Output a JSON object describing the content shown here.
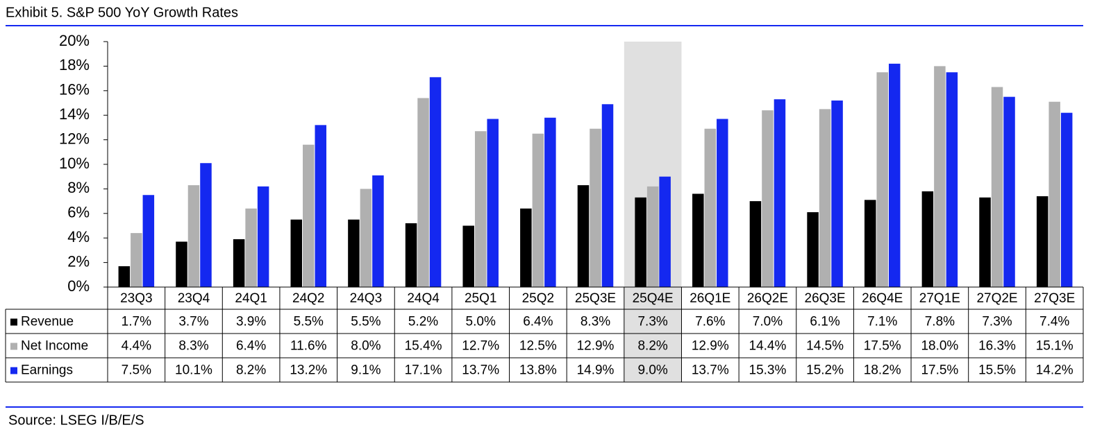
{
  "chart_data": {
    "type": "bar",
    "title": "Exhibit 5.  S&P 500 YoY Growth Rates",
    "source": "Source: LSEG I/B/E/S",
    "categories": [
      "23Q3",
      "23Q4",
      "24Q1",
      "24Q2",
      "24Q3",
      "24Q4",
      "25Q1",
      "25Q2",
      "25Q3E",
      "25Q4E",
      "26Q1E",
      "26Q2E",
      "26Q3E",
      "26Q4E",
      "27Q1E",
      "27Q2E",
      "27Q3E"
    ],
    "series": [
      {
        "name": "Revenue",
        "color": "#000000",
        "values": [
          1.7,
          3.7,
          3.9,
          5.5,
          5.5,
          5.2,
          5.0,
          6.4,
          8.3,
          7.3,
          7.6,
          7.0,
          6.1,
          7.1,
          7.8,
          7.3,
          7.4
        ],
        "value_labels": [
          "1.7%",
          "3.7%",
          "3.9%",
          "5.5%",
          "5.5%",
          "5.2%",
          "5.0%",
          "6.4%",
          "8.3%",
          "7.3%",
          "7.6%",
          "7.0%",
          "6.1%",
          "7.1%",
          "7.8%",
          "7.3%",
          "7.4%"
        ]
      },
      {
        "name": "Net Income",
        "color": "#b0b0b0",
        "values": [
          4.4,
          8.3,
          6.4,
          11.6,
          8.0,
          15.4,
          12.7,
          12.5,
          12.9,
          8.2,
          12.9,
          14.4,
          14.5,
          17.5,
          18.0,
          16.3,
          15.1
        ],
        "value_labels": [
          "4.4%",
          "8.3%",
          "6.4%",
          "11.6%",
          "8.0%",
          "15.4%",
          "12.7%",
          "12.5%",
          "12.9%",
          "8.2%",
          "12.9%",
          "14.4%",
          "14.5%",
          "17.5%",
          "18.0%",
          "16.3%",
          "15.1%"
        ]
      },
      {
        "name": "Earnings",
        "color": "#1428f0",
        "values": [
          7.5,
          10.1,
          8.2,
          13.2,
          9.1,
          17.1,
          13.7,
          13.8,
          14.9,
          9.0,
          13.7,
          15.3,
          15.2,
          18.2,
          17.5,
          15.5,
          14.2
        ],
        "value_labels": [
          "7.5%",
          "10.1%",
          "8.2%",
          "13.2%",
          "9.1%",
          "17.1%",
          "13.7%",
          "13.8%",
          "14.9%",
          "9.0%",
          "13.7%",
          "15.3%",
          "15.2%",
          "18.2%",
          "17.5%",
          "15.5%",
          "14.2%"
        ]
      }
    ],
    "ylim": [
      0,
      20
    ],
    "yticks": [
      {
        "value": 0,
        "label": "0%"
      },
      {
        "value": 2,
        "label": "2%"
      },
      {
        "value": 4,
        "label": "4%"
      },
      {
        "value": 6,
        "label": "6%"
      },
      {
        "value": 8,
        "label": "8%"
      },
      {
        "value": 10,
        "label": "10%"
      },
      {
        "value": 12,
        "label": "12%"
      },
      {
        "value": 14,
        "label": "14%"
      },
      {
        "value": 16,
        "label": "16%"
      },
      {
        "value": 18,
        "label": "18%"
      },
      {
        "value": 20,
        "label": "20%"
      }
    ],
    "grid": false,
    "highlight": {
      "category_index": 9,
      "color": "#e0e0e0"
    },
    "rule_color": "#1428f0"
  }
}
